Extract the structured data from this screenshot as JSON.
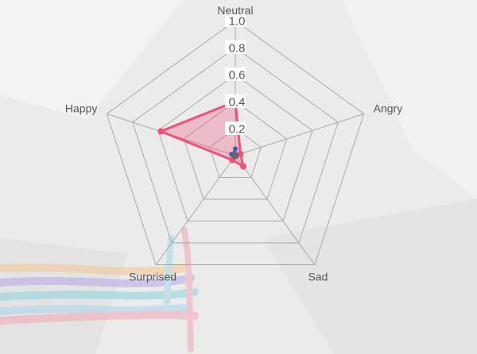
{
  "chart_data": {
    "type": "radar",
    "categories": [
      "Neutral",
      "Angry",
      "Sad",
      "Surprised",
      "Happy"
    ],
    "rlim": [
      0,
      1.0
    ],
    "ticks": [
      "0.2",
      "0.4",
      "0.6",
      "0.8",
      "1.0"
    ],
    "grid": true,
    "legend": "none",
    "series": [
      {
        "color": "#f0507a",
        "values": [
          0.4,
          0.04,
          0.1,
          0.04,
          0.58
        ]
      },
      {
        "color": "#3a5bb5",
        "values": [
          0.05,
          0.01,
          0.01,
          0.01,
          0.03
        ]
      },
      {
        "color": "#666666",
        "values": [
          0.01,
          0.01,
          0.01,
          0.01,
          0.01
        ]
      }
    ]
  },
  "colors": {
    "background": "#ebebeb",
    "grid": "#a9a9a9",
    "primary_series": "#f0507a"
  }
}
